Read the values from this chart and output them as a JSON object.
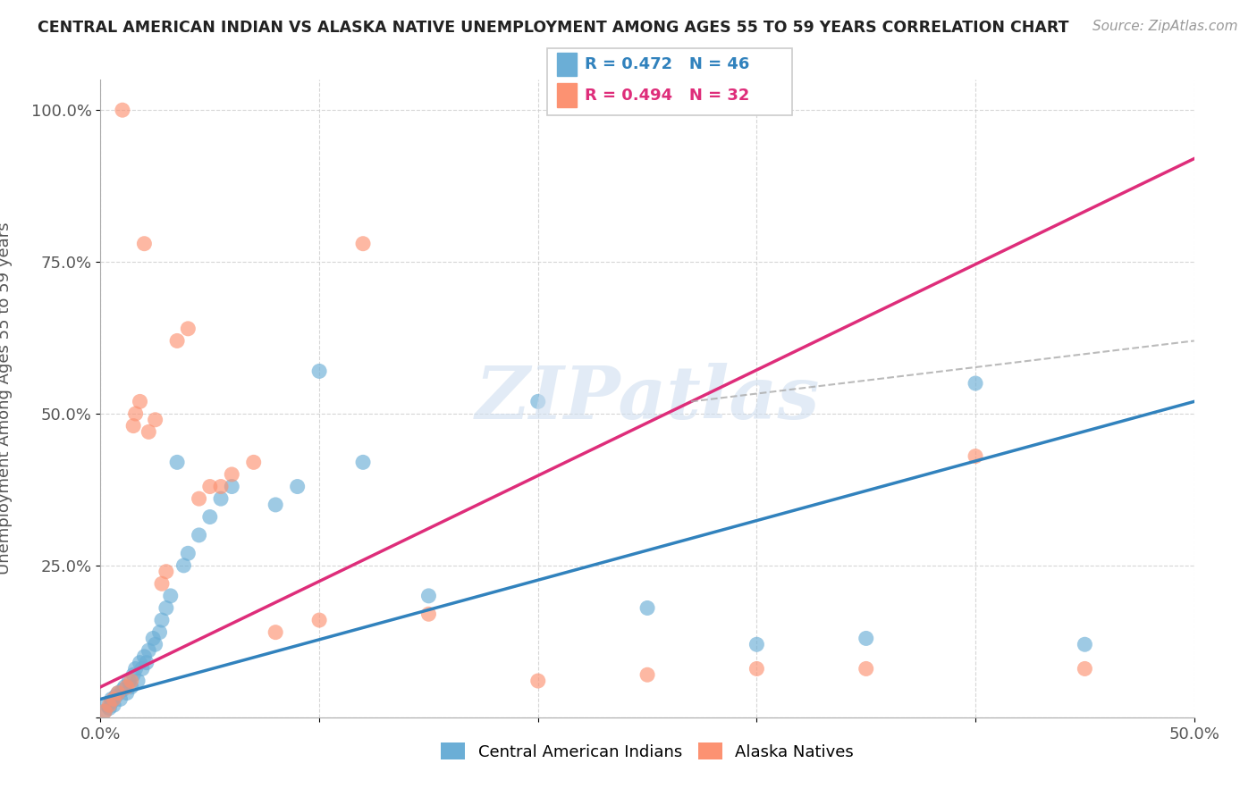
{
  "title": "CENTRAL AMERICAN INDIAN VS ALASKA NATIVE UNEMPLOYMENT AMONG AGES 55 TO 59 YEARS CORRELATION CHART",
  "source": "Source: ZipAtlas.com",
  "ylabel": "Unemployment Among Ages 55 to 59 years",
  "xlim": [
    0.0,
    0.5
  ],
  "ylim": [
    0.0,
    1.05
  ],
  "xticks": [
    0.0,
    0.1,
    0.2,
    0.3,
    0.4,
    0.5
  ],
  "xticklabels": [
    "0.0%",
    "",
    "",
    "",
    "",
    "50.0%"
  ],
  "yticks": [
    0.0,
    0.25,
    0.5,
    0.75,
    1.0
  ],
  "yticklabels": [
    "",
    "25.0%",
    "50.0%",
    "75.0%",
    "100.0%"
  ],
  "blue_R": 0.472,
  "blue_N": 46,
  "pink_R": 0.494,
  "pink_N": 32,
  "blue_label": "Central American Indians",
  "pink_label": "Alaska Natives",
  "blue_color": "#6baed6",
  "pink_color": "#fc9272",
  "blue_line_color": "#3182bd",
  "pink_line_color": "#de2d7a",
  "background_color": "#ffffff",
  "grid_color": "#cccccc",
  "watermark": "ZIPatlas",
  "blue_scatter_x": [
    0.002,
    0.003,
    0.004,
    0.005,
    0.005,
    0.006,
    0.007,
    0.008,
    0.009,
    0.01,
    0.011,
    0.012,
    0.013,
    0.014,
    0.015,
    0.016,
    0.017,
    0.018,
    0.019,
    0.02,
    0.021,
    0.022,
    0.024,
    0.025,
    0.027,
    0.028,
    0.03,
    0.032,
    0.035,
    0.038,
    0.04,
    0.045,
    0.05,
    0.055,
    0.06,
    0.08,
    0.09,
    0.1,
    0.12,
    0.15,
    0.2,
    0.25,
    0.3,
    0.35,
    0.4,
    0.45
  ],
  "blue_scatter_y": [
    0.01,
    0.02,
    0.015,
    0.025,
    0.03,
    0.02,
    0.035,
    0.04,
    0.03,
    0.045,
    0.05,
    0.04,
    0.06,
    0.05,
    0.07,
    0.08,
    0.06,
    0.09,
    0.08,
    0.1,
    0.09,
    0.11,
    0.13,
    0.12,
    0.14,
    0.16,
    0.18,
    0.2,
    0.42,
    0.25,
    0.27,
    0.3,
    0.33,
    0.36,
    0.38,
    0.35,
    0.38,
    0.57,
    0.42,
    0.2,
    0.52,
    0.18,
    0.12,
    0.13,
    0.55,
    0.12
  ],
  "pink_scatter_x": [
    0.002,
    0.004,
    0.006,
    0.008,
    0.01,
    0.012,
    0.014,
    0.015,
    0.016,
    0.018,
    0.02,
    0.022,
    0.025,
    0.028,
    0.03,
    0.035,
    0.04,
    0.045,
    0.05,
    0.055,
    0.06,
    0.07,
    0.08,
    0.1,
    0.12,
    0.15,
    0.2,
    0.25,
    0.3,
    0.35,
    0.4,
    0.45
  ],
  "pink_scatter_y": [
    0.01,
    0.02,
    0.03,
    0.04,
    1.0,
    0.05,
    0.06,
    0.48,
    0.5,
    0.52,
    0.78,
    0.47,
    0.49,
    0.22,
    0.24,
    0.62,
    0.64,
    0.36,
    0.38,
    0.38,
    0.4,
    0.42,
    0.14,
    0.16,
    0.78,
    0.17,
    0.06,
    0.07,
    0.08,
    0.08,
    0.43,
    0.08
  ],
  "blue_trend": [
    0.03,
    0.52
  ],
  "pink_trend": [
    0.05,
    0.92
  ],
  "dash_line_x": [
    0.27,
    0.5
  ],
  "dash_line_y": [
    0.52,
    0.62
  ]
}
